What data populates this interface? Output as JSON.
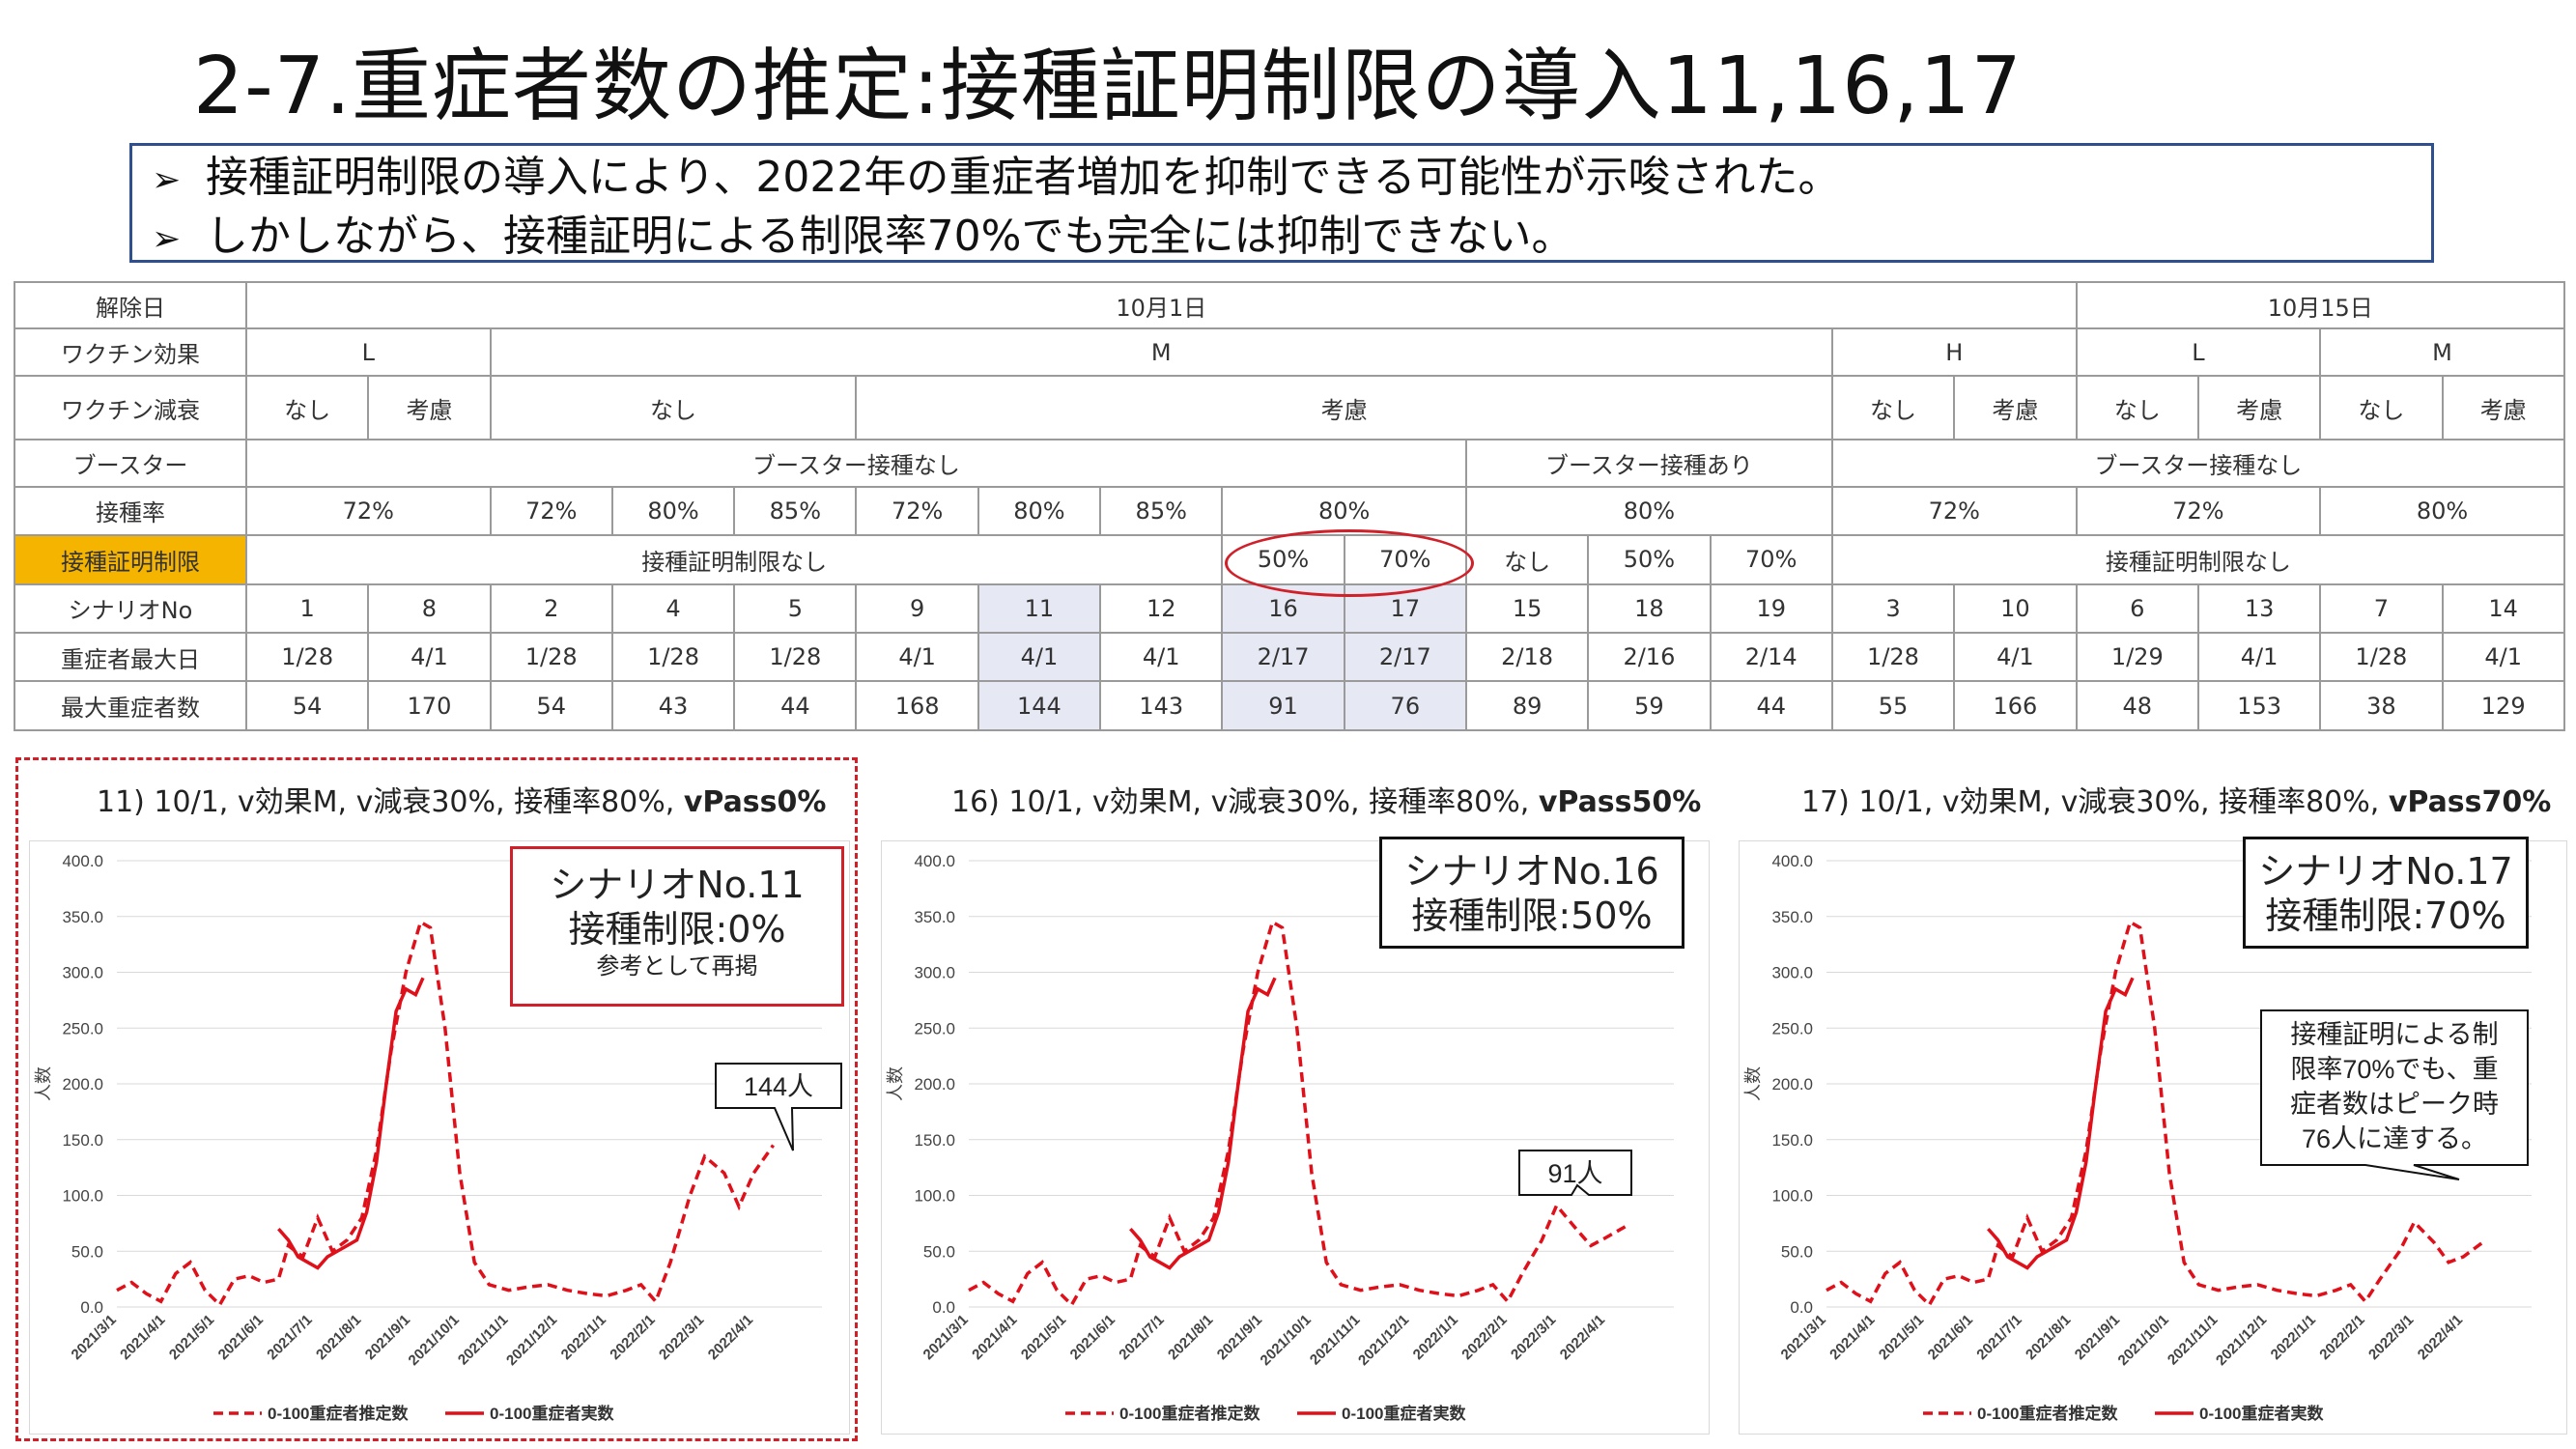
{
  "title": "2-7.重症者数の推定:接種証明制限の導入11,16,17",
  "summary": [
    "接種証明制限の導入により、2022年の重症者増加を抑制できる可能性が示唆された。",
    "しかしながら、接種証明による制限率70%でも完全には抑制できない。"
  ],
  "table": {
    "labels": {
      "release": "解除日",
      "effect": "ワクチン効果",
      "decay": "ワクチン減衰",
      "booster": "ブースター",
      "rate": "接種率",
      "cert": "接種証明制限",
      "scenario": "シナリオNo",
      "peakday": "重症者最大日",
      "peak": "最大重症者数"
    },
    "release": [
      "10月1日",
      "10月15日"
    ],
    "effect": [
      "L",
      "M",
      "H",
      "L",
      "M"
    ],
    "decay": [
      "なし",
      "考慮",
      "なし",
      "考慮",
      "なし",
      "考慮",
      "なし",
      "考慮",
      "なし",
      "考慮"
    ],
    "booster": [
      "ブースター接種なし",
      "ブースター接種あり",
      "ブースター接種なし"
    ],
    "rate": [
      "72%",
      "72%",
      "80%",
      "85%",
      "72%",
      "80%",
      "85%",
      "80%",
      "80%",
      "72%",
      "72%",
      "80%"
    ],
    "cert": [
      "接種証明制限なし",
      "50%",
      "70%",
      "なし",
      "50%",
      "70%",
      "接種証明制限なし"
    ],
    "scenario": [
      "1",
      "8",
      "2",
      "4",
      "5",
      "9",
      "11",
      "12",
      "16",
      "17",
      "15",
      "18",
      "19",
      "3",
      "10",
      "6",
      "13",
      "7",
      "14"
    ],
    "peakday": [
      "1/28",
      "4/1",
      "1/28",
      "1/28",
      "1/28",
      "4/1",
      "4/1",
      "4/1",
      "2/17",
      "2/17",
      "2/18",
      "2/16",
      "2/14",
      "1/28",
      "4/1",
      "1/29",
      "4/1",
      "1/28",
      "4/1"
    ],
    "peak": [
      "54",
      "170",
      "54",
      "43",
      "44",
      "168",
      "144",
      "143",
      "91",
      "76",
      "89",
      "59",
      "44",
      "55",
      "166",
      "48",
      "153",
      "38",
      "129"
    ]
  },
  "panels": [
    {
      "title_plain": "11) 10/1, v効果M, v減衰30%, 接種率80%, ",
      "title_bold": "vPass0%",
      "scenario_line1": "シナリオNo.11",
      "scenario_line2": "接種制限:0%",
      "scenario_line3": "参考として再掲",
      "callout": "144人"
    },
    {
      "title_plain": "16) 10/1, v効果M, v減衰30%, 接種率80%, ",
      "title_bold": "vPass50%",
      "scenario_line1": "シナリオNo.16",
      "scenario_line2": "接種制限:50%",
      "callout": "91人"
    },
    {
      "title_plain": "17) 10/1, v効果M, v減衰30%, 接種率80%, ",
      "title_bold": "vPass70%",
      "scenario_line1": "シナリオNo.17",
      "scenario_line2": "接種制限:70%",
      "callout_lines": [
        "接種証明による制",
        "限率70%でも、重",
        "症者数はピーク時",
        "76人に達する。"
      ]
    }
  ],
  "chart_data": [
    {
      "type": "line",
      "ylabel": "人数",
      "ylim": [
        0,
        400
      ],
      "yticks": [
        "0.0",
        "50.0",
        "100.0",
        "150.0",
        "200.0",
        "250.0",
        "300.0",
        "350.0",
        "400.0"
      ],
      "x_ticks": [
        "2021/3/1",
        "2021/4/1",
        "2021/5/1",
        "2021/6/1",
        "2021/7/1",
        "2021/8/1",
        "2021/9/1",
        "2021/10/1",
        "2021/11/1",
        "2021/12/1",
        "2022/1/1",
        "2022/2/1",
        "2022/3/1",
        "2022/4/1"
      ],
      "legend": [
        "0-100重症者推定数",
        "0-100重症者実数"
      ],
      "series": [
        {
          "name": "0-100重症者推定数",
          "style": "dashed",
          "color": "#e0101a",
          "points": [
            [
              1,
              15
            ],
            [
              1.3,
              22
            ],
            [
              1.6,
              12
            ],
            [
              1.9,
              5
            ],
            [
              2.2,
              30
            ],
            [
              2.5,
              40
            ],
            [
              2.8,
              15
            ],
            [
              3.1,
              2
            ],
            [
              3.4,
              25
            ],
            [
              3.7,
              28
            ],
            [
              4.0,
              22
            ],
            [
              4.3,
              25
            ],
            [
              4.5,
              55
            ],
            [
              4.8,
              45
            ],
            [
              5.1,
              80
            ],
            [
              5.4,
              50
            ],
            [
              5.7,
              60
            ],
            [
              6.0,
              80
            ],
            [
              6.3,
              140
            ],
            [
              6.6,
              230
            ],
            [
              6.9,
              300
            ],
            [
              7.2,
              345
            ],
            [
              7.4,
              340
            ],
            [
              7.7,
              250
            ],
            [
              8.0,
              120
            ],
            [
              8.3,
              40
            ],
            [
              8.6,
              20
            ],
            [
              9.0,
              15
            ],
            [
              9.4,
              18
            ],
            [
              9.8,
              20
            ],
            [
              10.2,
              15
            ],
            [
              10.6,
              12
            ],
            [
              11.0,
              10
            ],
            [
              11.4,
              15
            ],
            [
              11.7,
              20
            ],
            [
              12.0,
              5
            ],
            [
              12.3,
              40
            ],
            [
              12.7,
              100
            ],
            [
              13.0,
              135
            ],
            [
              13.4,
              120
            ],
            [
              13.7,
              90
            ],
            [
              14.0,
              120
            ],
            [
              14.4,
              145
            ]
          ]
        },
        {
          "name": "0-100重症者推定数",
          "style": "dashed",
          "color": "#e0101a",
          "points": [
            [
              1,
              15
            ],
            [
              1.3,
              22
            ],
            [
              1.6,
              12
            ],
            [
              1.9,
              5
            ],
            [
              2.2,
              30
            ],
            [
              2.5,
              40
            ],
            [
              2.8,
              15
            ],
            [
              3.1,
              2
            ],
            [
              3.4,
              25
            ],
            [
              3.7,
              28
            ],
            [
              4.0,
              22
            ],
            [
              4.3,
              25
            ],
            [
              4.5,
              55
            ],
            [
              4.8,
              45
            ],
            [
              5.1,
              80
            ],
            [
              5.4,
              50
            ],
            [
              5.7,
              60
            ],
            [
              6.0,
              80
            ],
            [
              6.3,
              140
            ],
            [
              6.6,
              230
            ],
            [
              6.9,
              300
            ],
            [
              7.2,
              345
            ],
            [
              7.4,
              340
            ],
            [
              7.7,
              250
            ],
            [
              8.0,
              120
            ],
            [
              8.3,
              40
            ],
            [
              8.6,
              20
            ],
            [
              9.0,
              15
            ],
            [
              9.4,
              18
            ],
            [
              9.8,
              20
            ],
            [
              10.2,
              15
            ],
            [
              10.6,
              12
            ],
            [
              11.0,
              10
            ],
            [
              11.4,
              15
            ],
            [
              11.7,
              20
            ],
            [
              12.0,
              5
            ],
            [
              12.3,
              30
            ],
            [
              12.7,
              60
            ],
            [
              13.0,
              91
            ],
            [
              13.4,
              70
            ],
            [
              13.7,
              55
            ],
            [
              14.0,
              62
            ],
            [
              14.4,
              72
            ]
          ]
        },
        {
          "name": "0-100重症者推定数",
          "style": "dashed",
          "color": "#e0101a",
          "points": [
            [
              1,
              15
            ],
            [
              1.3,
              22
            ],
            [
              1.6,
              12
            ],
            [
              1.9,
              5
            ],
            [
              2.2,
              30
            ],
            [
              2.5,
              40
            ],
            [
              2.8,
              15
            ],
            [
              3.1,
              2
            ],
            [
              3.4,
              25
            ],
            [
              3.7,
              28
            ],
            [
              4.0,
              22
            ],
            [
              4.3,
              25
            ],
            [
              4.5,
              55
            ],
            [
              4.8,
              45
            ],
            [
              5.1,
              80
            ],
            [
              5.4,
              50
            ],
            [
              5.7,
              60
            ],
            [
              6.0,
              80
            ],
            [
              6.3,
              140
            ],
            [
              6.6,
              230
            ],
            [
              6.9,
              300
            ],
            [
              7.2,
              345
            ],
            [
              7.4,
              340
            ],
            [
              7.7,
              250
            ],
            [
              8.0,
              120
            ],
            [
              8.3,
              40
            ],
            [
              8.6,
              20
            ],
            [
              9.0,
              15
            ],
            [
              9.4,
              18
            ],
            [
              9.8,
              20
            ],
            [
              10.2,
              15
            ],
            [
              10.6,
              12
            ],
            [
              11.0,
              10
            ],
            [
              11.4,
              15
            ],
            [
              11.7,
              20
            ],
            [
              12.0,
              5
            ],
            [
              12.3,
              25
            ],
            [
              12.7,
              50
            ],
            [
              13.0,
              76
            ],
            [
              13.4,
              58
            ],
            [
              13.7,
              40
            ],
            [
              14.0,
              45
            ],
            [
              14.4,
              58
            ]
          ]
        }
      ],
      "actual": {
        "name": "0-100重症者実数",
        "style": "solid",
        "color": "#e0101a",
        "points": [
          [
            4.3,
            70
          ],
          [
            4.5,
            60
          ],
          [
            4.7,
            45
          ],
          [
            4.9,
            40
          ],
          [
            5.1,
            35
          ],
          [
            5.3,
            45
          ],
          [
            5.5,
            50
          ],
          [
            5.7,
            55
          ],
          [
            5.9,
            60
          ],
          [
            6.1,
            85
          ],
          [
            6.3,
            130
          ],
          [
            6.5,
            200
          ],
          [
            6.7,
            265
          ],
          [
            6.9,
            285
          ],
          [
            7.1,
            280
          ],
          [
            7.25,
            295
          ]
        ]
      }
    }
  ]
}
